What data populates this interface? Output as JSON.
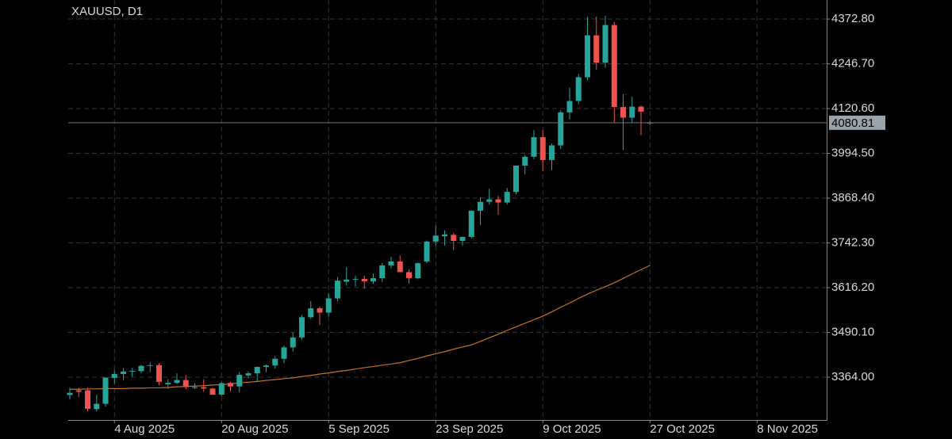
{
  "chart_data": {
    "type": "candlestick",
    "title": "XAUUSD, D1",
    "x": [
      "28 Jul 2025",
      "29 Jul 2025",
      "30 Jul 2025",
      "31 Jul 2025",
      "1 Aug 2025",
      "4 Aug 2025",
      "5 Aug 2025",
      "6 Aug 2025",
      "7 Aug 2025",
      "8 Aug 2025",
      "11 Aug 2025",
      "12 Aug 2025",
      "13 Aug 2025",
      "14 Aug 2025",
      "15 Aug 2025",
      "18 Aug 2025",
      "19 Aug 2025",
      "20 Aug 2025",
      "21 Aug 2025",
      "22 Aug 2025",
      "25 Aug 2025",
      "26 Aug 2025",
      "27 Aug 2025",
      "28 Aug 2025",
      "29 Aug 2025",
      "1 Sep 2025",
      "2 Sep 2025",
      "3 Sep 2025",
      "4 Sep 2025",
      "5 Sep 2025",
      "8 Sep 2025",
      "9 Sep 2025",
      "10 Sep 2025",
      "11 Sep 2025",
      "12 Sep 2025",
      "15 Sep 2025",
      "16 Sep 2025",
      "17 Sep 2025",
      "18 Sep 2025",
      "19 Sep 2025",
      "22 Sep 2025",
      "23 Sep 2025",
      "24 Sep 2025",
      "25 Sep 2025",
      "26 Sep 2025",
      "29 Sep 2025",
      "30 Sep 2025",
      "1 Oct 2025",
      "2 Oct 2025",
      "3 Oct 2025",
      "6 Oct 2025",
      "7 Oct 2025",
      "8 Oct 2025",
      "9 Oct 2025",
      "10 Oct 2025",
      "13 Oct 2025",
      "14 Oct 2025",
      "15 Oct 2025",
      "16 Oct 2025",
      "17 Oct 2025",
      "20 Oct 2025",
      "21 Oct 2025",
      "22 Oct 2025",
      "23 Oct 2025",
      "24 Oct 2025",
      "27 Oct 2025"
    ],
    "open": [
      3314,
      3327,
      3327,
      3274,
      3289,
      3362,
      3373,
      3380,
      3381,
      3396,
      3398,
      3344,
      3348,
      3356,
      3336,
      3336,
      3332,
      3315,
      3348,
      3338,
      3369,
      3375,
      3393,
      3397,
      3416,
      3448,
      3476,
      3533,
      3558,
      3546,
      3586,
      3633,
      3639,
      3641,
      3634,
      3643,
      3679,
      3690,
      3660,
      3643,
      3690,
      3746,
      3761,
      3765,
      3748,
      3759,
      3833,
      3858,
      3865,
      3856,
      3886,
      3960,
      3985,
      4040,
      3976,
      4017,
      4110,
      4142,
      4209,
      4327,
      4250,
      4356,
      4125,
      4095,
      4126,
      4080
    ],
    "high": [
      3334,
      3334,
      3334,
      3315,
      3363,
      3385,
      3390,
      3390,
      3398,
      3405,
      3404,
      3358,
      3375,
      3370,
      3347,
      3358,
      3334,
      3350,
      3351,
      3379,
      3380,
      3394,
      3400,
      3423,
      3453,
      3490,
      3540,
      3578,
      3563,
      3600,
      3646,
      3674,
      3650,
      3650,
      3656,
      3686,
      3703,
      3707,
      3668,
      3687,
      3749,
      3791,
      3778,
      3771,
      3760,
      3834,
      3871,
      3895,
      3875,
      3897,
      3960,
      3990,
      4060,
      4059,
      4022,
      4116,
      4180,
      4218,
      4380,
      4380,
      4382,
      4365,
      4161,
      4154,
      4130,
      4085
    ],
    "low": [
      3301,
      3308,
      3268,
      3268,
      3281,
      3345,
      3356,
      3365,
      3375,
      3378,
      3341,
      3331,
      3345,
      3330,
      3331,
      3323,
      3315,
      3311,
      3324,
      3321,
      3360,
      3351,
      3378,
      3388,
      3403,
      3436,
      3470,
      3528,
      3511,
      3535,
      3578,
      3622,
      3620,
      3613,
      3627,
      3632,
      3670,
      3660,
      3628,
      3640,
      3685,
      3734,
      3735,
      3722,
      3735,
      3755,
      3793,
      3850,
      3821,
      3850,
      3880,
      3935,
      3978,
      3944,
      3947,
      4006,
      4090,
      4133,
      4200,
      4230,
      4235,
      4082,
      4004,
      4080,
      4045,
      4074
    ],
    "close": [
      3320,
      3323,
      3275,
      3289,
      3363,
      3373,
      3380,
      3382,
      3396,
      3398,
      3351,
      3348,
      3356,
      3336,
      3336,
      3332,
      3315,
      3347,
      3338,
      3371,
      3375,
      3393,
      3397,
      3416,
      3448,
      3476,
      3533,
      3558,
      3546,
      3586,
      3636,
      3639,
      3641,
      3634,
      3643,
      3679,
      3690,
      3660,
      3643,
      3685,
      3746,
      3763,
      3766,
      3748,
      3759,
      3833,
      3858,
      3865,
      3856,
      3886,
      3960,
      3985,
      4040,
      3976,
      4017,
      4110,
      4142,
      4209,
      4327,
      4250,
      4356,
      4125,
      4095,
      4126,
      4112,
      4081
    ],
    "up_color": "#26a69a",
    "down_color": "#ef5350",
    "overlay": {
      "color": "#c8701e",
      "values": [
        3330,
        3330,
        3331,
        3331,
        3332,
        3332,
        3332,
        3333,
        3333,
        3334,
        3334,
        3335,
        3337,
        3338,
        3339,
        3340,
        3342,
        3343,
        3345,
        3348,
        3350,
        3352,
        3355,
        3357,
        3360,
        3362,
        3366,
        3369,
        3373,
        3376,
        3380,
        3383,
        3387,
        3391,
        3394,
        3398,
        3401,
        3405,
        3411,
        3417,
        3424,
        3430,
        3436,
        3443,
        3449,
        3455,
        3465,
        3475,
        3485,
        3496,
        3506,
        3516,
        3526,
        3536,
        3548,
        3561,
        3573,
        3586,
        3598,
        3609,
        3619,
        3630,
        3642,
        3655,
        3667,
        3679
      ]
    },
    "last_price": 4080.81,
    "ylim": [
      3243.5,
      4426.5
    ],
    "yticks": [
      {
        "value": 3364,
        "label": "3364.00"
      },
      {
        "value": 3490.1,
        "label": "3490.10"
      },
      {
        "value": 3616.2,
        "label": "3616.20"
      },
      {
        "value": 3742.3,
        "label": "3742.30"
      },
      {
        "value": 3868.4,
        "label": "3868.40"
      },
      {
        "value": 3994.5,
        "label": "3994.50"
      },
      {
        "value": 4120.6,
        "label": "4120.60"
      },
      {
        "value": 4246.7,
        "label": "4246.70"
      },
      {
        "value": 4372.8,
        "label": "4372.80"
      }
    ],
    "xticks": [
      "4 Aug 2025",
      "20 Aug 2025",
      "5 Sep 2025",
      "23 Sep 2025",
      "9 Oct 2025",
      "27 Oct 2025",
      "8 Nov 2025"
    ],
    "grid": true
  }
}
